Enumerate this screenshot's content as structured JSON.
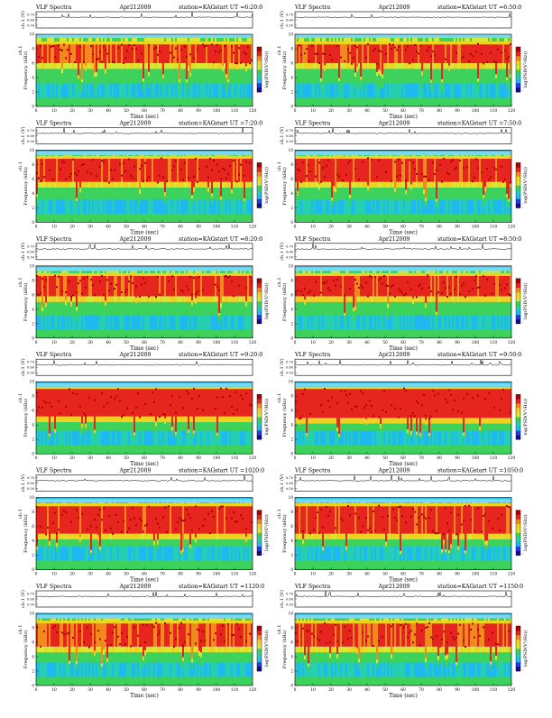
{
  "figure": {
    "panel_common": {
      "chart_title": "VLF Spectra",
      "date": "Apr212009",
      "station": "station=KAG",
      "ut_prefix": "start  UT =",
      "xlabel": "Time  (sec)",
      "ylabel_freq": "Frequency  (kHz)",
      "ylabel_ch": "ch.1 (V)",
      "ylabel_ch_inner": "ch.1",
      "colorbar_label": "log(PSD(V²/Hz))",
      "x_ticks": [
        "0",
        "10",
        "20",
        "30",
        "40",
        "50",
        "60",
        "70",
        "80",
        "90",
        "100",
        "110",
        "120"
      ],
      "freq_ticks": [
        "0",
        "2",
        "4",
        "6",
        "8",
        "10"
      ],
      "ch_ticks": [
        "0.70",
        "0.60",
        "0.50"
      ]
    }
  },
  "chart_data": [
    {
      "type": "heatmap",
      "panel": "p1",
      "start_ut": "6:20:0",
      "xlim": [
        0,
        120
      ],
      "ylim_freq_khz": [
        0,
        10
      ],
      "ylim_ch_v": [
        0.5,
        0.7
      ],
      "band_top_khz": 9.5,
      "red_band_khz": [
        6.0,
        8.8
      ],
      "intensity": 0.62
    },
    {
      "type": "heatmap",
      "panel": "p2",
      "start_ut": "6:50:0",
      "xlim": [
        0,
        120
      ],
      "ylim_freq_khz": [
        0,
        10
      ],
      "ylim_ch_v": [
        0.5,
        0.7
      ],
      "band_top_khz": 9.5,
      "red_band_khz": [
        6.0,
        8.8
      ],
      "intensity": 0.66
    },
    {
      "type": "heatmap",
      "panel": "p3",
      "start_ut": "7:20:0",
      "xlim": [
        0,
        120
      ],
      "ylim_freq_khz": [
        0,
        10
      ],
      "ylim_ch_v": [
        0.5,
        0.7
      ],
      "band_top_khz": 9.3,
      "red_band_khz": [
        5.6,
        9.0
      ],
      "intensity": 0.7
    },
    {
      "type": "heatmap",
      "panel": "p4",
      "start_ut": "7:50:0",
      "xlim": [
        0,
        120
      ],
      "ylim_freq_khz": [
        0,
        10
      ],
      "ylim_ch_v": [
        0.5,
        0.7
      ],
      "band_top_khz": 9.3,
      "red_band_khz": [
        5.6,
        9.0
      ],
      "intensity": 0.68
    },
    {
      "type": "heatmap",
      "panel": "p5",
      "start_ut": "8:20:0",
      "xlim": [
        0,
        120
      ],
      "ylim_freq_khz": [
        0,
        10
      ],
      "ylim_ch_v": [
        0.5,
        0.7
      ],
      "band_top_khz": 9.3,
      "red_band_khz": [
        5.8,
        8.8
      ],
      "intensity": 0.66
    },
    {
      "type": "heatmap",
      "panel": "p6",
      "start_ut": "8:50:0",
      "xlim": [
        0,
        120
      ],
      "ylim_freq_khz": [
        0,
        10
      ],
      "ylim_ch_v": [
        0.5,
        0.7
      ],
      "band_top_khz": 9.3,
      "red_band_khz": [
        5.8,
        8.8
      ],
      "intensity": 0.72
    },
    {
      "type": "heatmap",
      "panel": "p7",
      "start_ut": "9:20:0",
      "xlim": [
        0,
        120
      ],
      "ylim_freq_khz": [
        0,
        10
      ],
      "ylim_ch_v": [
        0.5,
        0.7
      ],
      "band_top_khz": 9.3,
      "red_band_khz": [
        5.2,
        9.2
      ],
      "intensity": 0.8
    },
    {
      "type": "heatmap",
      "panel": "p8",
      "start_ut": "9:50:0",
      "xlim": [
        0,
        120
      ],
      "ylim_freq_khz": [
        0,
        10
      ],
      "ylim_ch_v": [
        0.5,
        0.7
      ],
      "band_top_khz": 9.3,
      "red_band_khz": [
        5.0,
        9.2
      ],
      "intensity": 0.82
    },
    {
      "type": "heatmap",
      "panel": "p9",
      "start_ut": "1020:0",
      "xlim": [
        0,
        120
      ],
      "ylim_freq_khz": [
        0,
        10
      ],
      "ylim_ch_v": [
        0.5,
        0.7
      ],
      "band_top_khz": 9.3,
      "red_band_khz": [
        5.0,
        9.0
      ],
      "intensity": 0.72
    },
    {
      "type": "heatmap",
      "panel": "p10",
      "start_ut": "1050:0",
      "xlim": [
        0,
        120
      ],
      "ylim_freq_khz": [
        0,
        10
      ],
      "ylim_ch_v": [
        0.5,
        0.7
      ],
      "band_top_khz": 9.3,
      "red_band_khz": [
        5.0,
        9.0
      ],
      "intensity": 0.7
    },
    {
      "type": "heatmap",
      "panel": "p11",
      "start_ut": "1120:0",
      "xlim": [
        0,
        120
      ],
      "ylim_freq_khz": [
        0,
        10
      ],
      "ylim_ch_v": [
        0.5,
        0.7
      ],
      "band_top_khz": 9.3,
      "red_band_khz": [
        5.4,
        8.8
      ],
      "intensity": 0.62
    },
    {
      "type": "heatmap",
      "panel": "p12",
      "start_ut": "1150:0",
      "xlim": [
        0,
        120
      ],
      "ylim_freq_khz": [
        0,
        10
      ],
      "ylim_ch_v": [
        0.5,
        0.7
      ],
      "band_top_khz": 9.3,
      "red_band_khz": [
        5.4,
        8.8
      ],
      "intensity": 0.62
    }
  ],
  "colormap": {
    "stops": [
      "#1a0a8a",
      "#1f3ce8",
      "#20b8f0",
      "#25d0b0",
      "#3cd25c",
      "#d6e832",
      "#f0d020",
      "#f08a1c",
      "#e6261e",
      "#b00000"
    ],
    "background": "#20c0e8"
  }
}
